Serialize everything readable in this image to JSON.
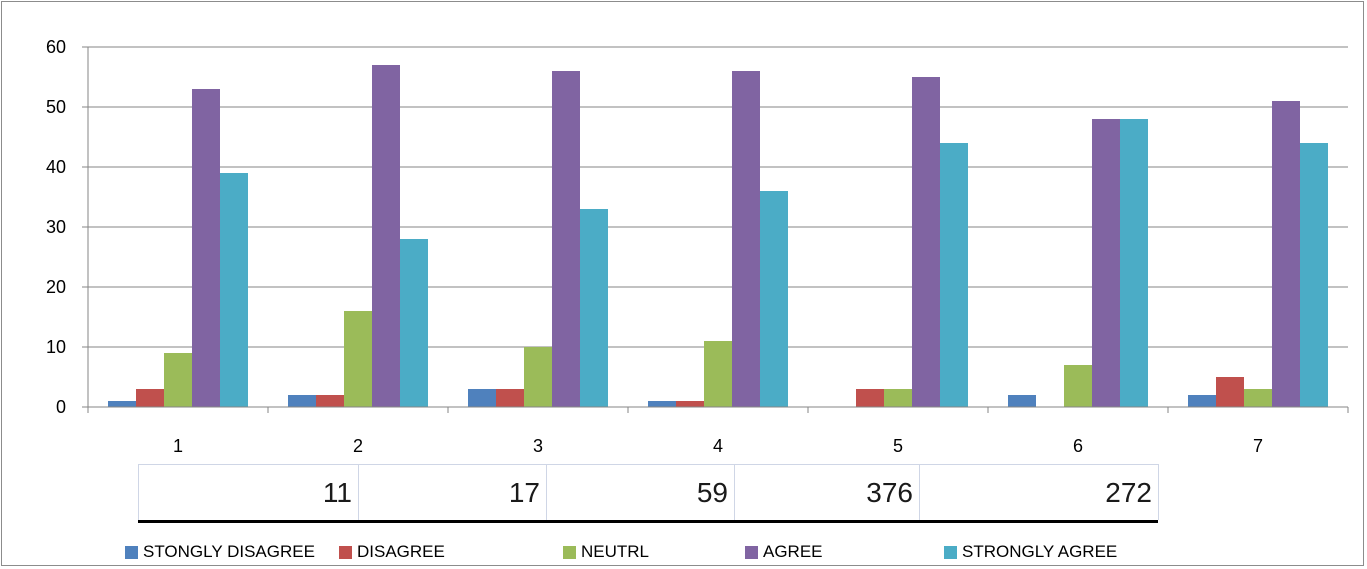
{
  "chart_data": {
    "type": "bar",
    "categories": [
      "1",
      "2",
      "3",
      "4",
      "5",
      "6",
      "7"
    ],
    "series": [
      {
        "name": "STONGLY DISAGREE",
        "color": "#4f81bd",
        "values": [
          1,
          2,
          3,
          1,
          0,
          2,
          2
        ]
      },
      {
        "name": "DISAGREE",
        "color": "#c0504d",
        "values": [
          3,
          2,
          3,
          1,
          3,
          0,
          5
        ]
      },
      {
        "name": "NEUTRL",
        "color": "#9bbb59",
        "values": [
          9,
          16,
          10,
          11,
          3,
          7,
          3
        ]
      },
      {
        "name": "AGREE",
        "color": "#8064a2",
        "values": [
          53,
          57,
          56,
          56,
          55,
          48,
          51
        ]
      },
      {
        "name": "STRONGLY AGREE",
        "color": "#4bacc6",
        "values": [
          39,
          28,
          33,
          36,
          44,
          48,
          44
        ]
      }
    ],
    "yticks": [
      "0",
      "10",
      "20",
      "30",
      "40",
      "50",
      "60"
    ],
    "ylim": [
      0,
      60
    ],
    "grid": true,
    "legend": "bottom",
    "totals": [
      "11",
      "17",
      "59",
      "376",
      "272"
    ]
  }
}
